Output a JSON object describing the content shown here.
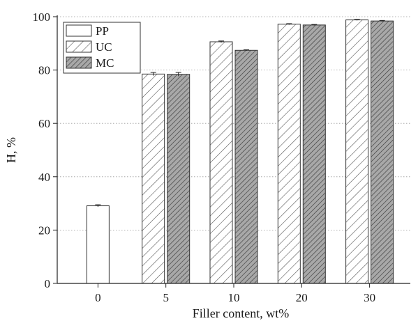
{
  "chart_data": {
    "type": "bar",
    "xlabel": "Filler content, wt%",
    "ylabel": "H, %",
    "ylim": [
      0,
      100
    ],
    "yticks": [
      0,
      20,
      40,
      60,
      80,
      100
    ],
    "grid": "horizontal dotted",
    "legend_position": "top-left",
    "categories": [
      "0",
      "5",
      "10",
      "20",
      "30"
    ],
    "series": [
      {
        "name": "PP",
        "pattern": "none",
        "fill": "#ffffff",
        "values": [
          29.1,
          null,
          null,
          null,
          null
        ],
        "errors": [
          0.4,
          null,
          null,
          null,
          null
        ]
      },
      {
        "name": "UC",
        "pattern": "light-hatch",
        "fill": "#ffffff",
        "values": [
          null,
          78.5,
          90.6,
          97.2,
          98.8
        ],
        "errors": [
          null,
          0.6,
          0.3,
          0.2,
          0.2
        ]
      },
      {
        "name": "MC",
        "pattern": "dark-hatch",
        "fill": "#9a9a9a",
        "values": [
          null,
          78.4,
          87.4,
          96.9,
          98.4
        ],
        "errors": [
          null,
          0.7,
          0.2,
          0.2,
          0.2
        ]
      }
    ]
  }
}
